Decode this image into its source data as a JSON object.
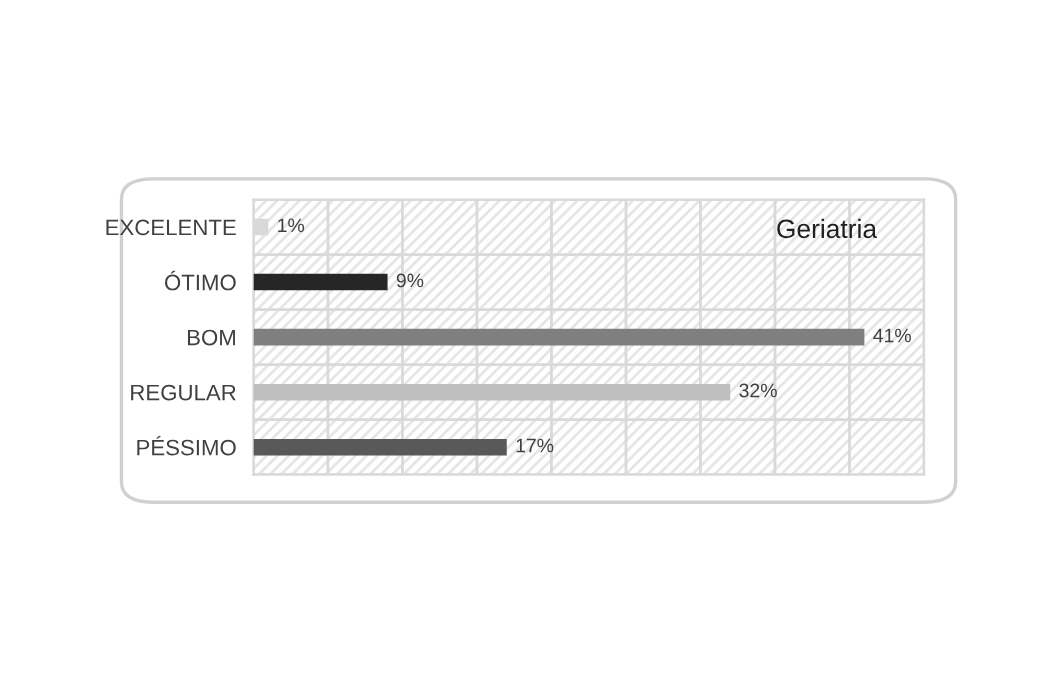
{
  "chart_data": {
    "type": "bar",
    "orientation": "horizontal",
    "title": "Geriatria",
    "categories": [
      "EXCELENTE",
      "ÓTIMO",
      "BOM",
      "REGULAR",
      "PÉSSIMO"
    ],
    "values": [
      1,
      9,
      41,
      32,
      17
    ],
    "value_labels": [
      "1%",
      "9%",
      "41%",
      "32%",
      "17%"
    ],
    "colors": [
      "#d9d9d9",
      "#262626",
      "#7f7f7f",
      "#bfbfbf",
      "#595959"
    ],
    "xlim": [
      0,
      45
    ],
    "xticks": [
      {
        "value": 0,
        "label": null
      },
      {
        "value": 5,
        "label": null
      },
      {
        "value": 10,
        "label": null
      },
      {
        "value": 15,
        "label": null
      },
      {
        "value": 20,
        "label": null
      },
      {
        "value": 25,
        "label": null
      },
      {
        "value": 30,
        "label": null
      },
      {
        "value": 35,
        "label": null
      },
      {
        "value": 40,
        "label": null
      },
      {
        "value": 45,
        "label": null
      }
    ],
    "grid": true,
    "tick_labels": "y"
  }
}
